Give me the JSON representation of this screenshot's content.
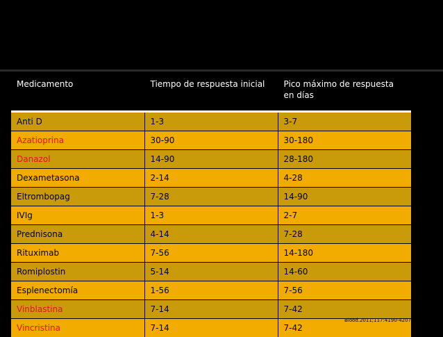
{
  "table": {
    "headers": [
      "Medicamento",
      "Tiempo de respuesta inicial",
      "Pico máximo de respuesta en días"
    ],
    "rows": [
      {
        "drug": "Anti D",
        "initial": "1-3",
        "peak": "3-7",
        "red": false
      },
      {
        "drug": "Azatioprina",
        "initial": "30-90",
        "peak": "30-180",
        "red": true
      },
      {
        "drug": "Danazol",
        "initial": "14-90",
        "peak": "28-180",
        "red": true
      },
      {
        "drug": "Dexametasona",
        "initial": "2-14",
        "peak": "4-28",
        "red": false
      },
      {
        "drug": "Eltrombopag",
        "initial": "7-28",
        "peak": "14-90",
        "red": false
      },
      {
        "drug": "IVIg",
        "initial": "1-3",
        "peak": "2-7",
        "red": false
      },
      {
        "drug": "Prednisona",
        "initial": "4-14",
        "peak": "7-28",
        "red": false
      },
      {
        "drug": "Rituximab",
        "initial": "7-56",
        "peak": "14-180",
        "red": false
      },
      {
        "drug": "Romiplostin",
        "initial": "5-14",
        "peak": "14-60",
        "red": false
      },
      {
        "drug": "Esplenectomía",
        "initial": "1-56",
        "peak": "7-56",
        "red": false
      },
      {
        "drug": "Vinblastina",
        "initial": "7-14",
        "peak": "7-42",
        "red": true
      },
      {
        "drug": "Vincristina",
        "initial": "7-14",
        "peak": "7-42",
        "red": true
      }
    ]
  },
  "citation": "Blood.2011;117:4190-4207",
  "colors": {
    "background": "#000000",
    "row_dark": "#c99a0a",
    "row_light": "#f2ac00",
    "red_text": "#e0141a"
  }
}
